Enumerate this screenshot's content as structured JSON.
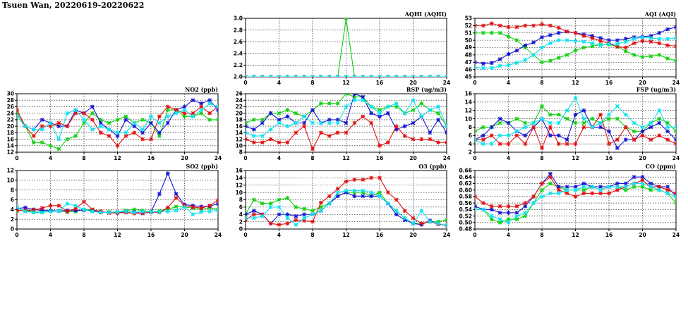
{
  "title": "Tsuen Wan, 20220619-20220622",
  "colors": {
    "green": "#10d010",
    "blue": "#1414d2",
    "red": "#e01010",
    "cyan": "#10e0f0"
  },
  "chart_data": [
    {
      "id": "no2",
      "type": "line",
      "title": "NO2 (ppb)",
      "xlim": [
        0,
        24
      ],
      "ylim": [
        12,
        30
      ],
      "xticks": [
        0,
        4,
        8,
        12,
        16,
        20,
        24
      ],
      "yticks": [
        12,
        14,
        16,
        18,
        20,
        22,
        24,
        26,
        28,
        30
      ],
      "series": [
        {
          "color": "green",
          "values": [
            24,
            20,
            15,
            15,
            14,
            13,
            16,
            17,
            21,
            24,
            22,
            21,
            22,
            23,
            21,
            22,
            21,
            17,
            25,
            25,
            23,
            23,
            24,
            22,
            22
          ]
        },
        {
          "color": "blue",
          "values": [
            23,
            20,
            19,
            22,
            21,
            20,
            20,
            25,
            24,
            26,
            21,
            19,
            17,
            22,
            20,
            18,
            21,
            18,
            21,
            25,
            26,
            28,
            27,
            28,
            25
          ]
        },
        {
          "color": "red",
          "values": [
            25,
            20,
            17,
            20,
            20,
            21,
            20,
            24,
            24,
            22,
            18,
            17,
            14,
            17,
            18,
            16,
            16,
            23,
            26,
            25,
            24,
            24,
            26,
            24,
            26
          ]
        },
        {
          "color": "cyan",
          "values": [
            23,
            20,
            19,
            19,
            21,
            16,
            24,
            25,
            22,
            19,
            20,
            19,
            18,
            18,
            21,
            19,
            23,
            21,
            23,
            24,
            25,
            23,
            25,
            27,
            26
          ]
        }
      ]
    },
    {
      "id": "so2",
      "type": "line",
      "title": "SO2 (ppb)",
      "xlim": [
        0,
        24
      ],
      "ylim": [
        0,
        12
      ],
      "xticks": [
        0,
        4,
        8,
        12,
        16,
        20,
        24
      ],
      "yticks": [
        0,
        2,
        4,
        6,
        8,
        10,
        12
      ],
      "series": [
        {
          "color": "green",
          "values": [
            3.7,
            3.8,
            3.5,
            3.5,
            3.6,
            3.7,
            3.5,
            3.6,
            4.0,
            4.0,
            3.4,
            3.5,
            3.5,
            3.8,
            4.0,
            3.8,
            3.5,
            3.7,
            4.0,
            4.6,
            4.5,
            4.3,
            4.0,
            4.4,
            4.0
          ]
        },
        {
          "color": "blue",
          "values": [
            4.2,
            4.4,
            4.0,
            3.8,
            3.8,
            3.7,
            3.8,
            3.8,
            3.9,
            3.8,
            3.5,
            3.4,
            3.3,
            3.5,
            3.5,
            3.2,
            3.5,
            7.2,
            11.4,
            7.2,
            5.0,
            4.8,
            4.6,
            4.7,
            5.2
          ]
        },
        {
          "color": "red",
          "values": [
            3.8,
            3.8,
            3.9,
            4.3,
            4.8,
            4.8,
            3.6,
            4.2,
            5.6,
            4.0,
            3.6,
            3.3,
            3.3,
            3.4,
            3.2,
            3.3,
            3.4,
            3.4,
            4.4,
            6.4,
            4.8,
            4.5,
            4.3,
            4.8,
            5.9
          ]
        },
        {
          "color": "cyan",
          "values": [
            4.5,
            3.6,
            3.4,
            3.4,
            3.6,
            3.7,
            5.2,
            4.8,
            4.0,
            3.6,
            3.4,
            3.4,
            3.5,
            3.6,
            3.4,
            3.6,
            3.5,
            3.5,
            3.6,
            3.8,
            4.5,
            3.0,
            3.5,
            3.6,
            3.8
          ]
        }
      ]
    },
    {
      "id": "aqhi",
      "type": "line",
      "title": "AQHI (AQHI)",
      "xlim": [
        0,
        24
      ],
      "ylim": [
        2.0,
        3.0
      ],
      "xticks": [
        0,
        4,
        8,
        12,
        16,
        20,
        24
      ],
      "yticks": [
        2.0,
        2.2,
        2.4,
        2.6,
        2.8,
        3.0
      ],
      "series": [
        {
          "color": "green",
          "values": [
            2,
            2,
            2,
            2,
            2,
            2,
            2,
            2,
            2,
            2,
            2,
            2,
            3,
            2,
            2,
            2,
            2,
            2,
            2,
            2,
            2,
            2,
            2,
            2,
            2
          ]
        },
        {
          "color": "blue",
          "values": [
            2,
            2,
            2,
            2,
            2,
            2,
            2,
            2,
            2,
            2,
            2,
            2,
            2,
            2,
            2,
            2,
            2,
            2,
            2,
            2,
            2,
            2,
            2,
            2,
            2
          ]
        },
        {
          "color": "red",
          "values": [
            2,
            2,
            2,
            2,
            2,
            2,
            2,
            2,
            2,
            2,
            2,
            2,
            2,
            2,
            2,
            2,
            2,
            2,
            2,
            2,
            2,
            2,
            2,
            2,
            2
          ]
        },
        {
          "color": "cyan",
          "values": [
            2,
            2,
            2,
            2,
            2,
            2,
            2,
            2,
            2,
            2,
            2,
            2,
            2,
            2,
            2,
            2,
            2,
            2,
            2,
            2,
            2,
            2,
            2,
            2,
            2
          ]
        }
      ]
    },
    {
      "id": "rsp",
      "type": "line",
      "title": "RSP (ug/m3)",
      "xlim": [
        0,
        24
      ],
      "ylim": [
        8,
        26
      ],
      "xticks": [
        0,
        4,
        8,
        12,
        16,
        20,
        24
      ],
      "yticks": [
        8,
        10,
        12,
        14,
        16,
        18,
        20,
        22,
        24,
        26
      ],
      "series": [
        {
          "color": "green",
          "values": [
            17,
            18,
            18,
            20,
            20,
            21,
            20,
            19,
            21,
            23,
            23,
            23,
            26,
            25,
            25,
            22,
            21,
            22,
            22,
            20,
            21,
            23,
            21,
            20,
            16
          ]
        },
        {
          "color": "blue",
          "values": [
            16,
            15,
            17,
            20,
            18,
            19,
            17,
            17,
            21,
            17,
            18,
            18,
            17,
            26,
            25,
            20,
            19,
            20,
            15,
            16,
            17,
            19,
            14,
            18,
            14
          ]
        },
        {
          "color": "red",
          "values": [
            12,
            11,
            11,
            12,
            11,
            11,
            14,
            16,
            9,
            14,
            13,
            14,
            14,
            17,
            19,
            17,
            10,
            11,
            16,
            13,
            12,
            12,
            12,
            11,
            11
          ]
        },
        {
          "color": "cyan",
          "values": [
            14,
            13,
            13,
            15,
            17,
            16,
            17,
            19,
            17,
            17,
            17,
            17,
            22,
            24,
            24,
            22,
            20,
            22,
            23,
            20,
            24,
            19,
            21,
            22,
            16
          ]
        }
      ]
    },
    {
      "id": "o3",
      "type": "line",
      "title": "O3 (ppb)",
      "xlim": [
        0,
        24
      ],
      "ylim": [
        0,
        16
      ],
      "xticks": [
        0,
        4,
        8,
        12,
        16,
        20,
        24
      ],
      "yticks": [
        0,
        2,
        4,
        6,
        8,
        10,
        12,
        14,
        16
      ],
      "series": [
        {
          "color": "green",
          "values": [
            4,
            8,
            7,
            7,
            8,
            8.5,
            6,
            5.5,
            5,
            6,
            7,
            9,
            10,
            10,
            10,
            9,
            10,
            7,
            5,
            3,
            1.5,
            1.5,
            2,
            2,
            2.5
          ]
        },
        {
          "color": "blue",
          "values": [
            4,
            5,
            4,
            1.5,
            4,
            4,
            3.5,
            4,
            4,
            5,
            7,
            9,
            10,
            9,
            9,
            9,
            9,
            7,
            4,
            2.5,
            1.5,
            1.2,
            2.3,
            1.4,
            1
          ]
        },
        {
          "color": "red",
          "values": [
            2.5,
            4,
            4,
            1.5,
            1.2,
            1.5,
            2.5,
            2.3,
            2,
            7.2,
            9,
            11,
            13,
            13.5,
            13.5,
            14,
            14,
            10,
            8,
            5,
            3,
            1.5,
            2,
            1.3,
            1
          ]
        },
        {
          "color": "cyan",
          "values": [
            3,
            3,
            3.5,
            6,
            6,
            3,
            1.2,
            3,
            4,
            5,
            7,
            10,
            10.5,
            10.5,
            10.5,
            10,
            9,
            7,
            5,
            3,
            1.5,
            5,
            2,
            1.5,
            1
          ]
        }
      ]
    },
    {
      "id": "aqi",
      "type": "line",
      "title": "AQI (AQI)",
      "xlim": [
        0,
        24
      ],
      "ylim": [
        45,
        53
      ],
      "xticks": [
        0,
        4,
        8,
        12,
        16,
        20,
        24
      ],
      "yticks": [
        45,
        46,
        47,
        48,
        49,
        50,
        51,
        52,
        53
      ],
      "series": [
        {
          "color": "green",
          "values": [
            51,
            51,
            51,
            51,
            50.5,
            50,
            49,
            48,
            47,
            47.2,
            47.6,
            48,
            48.6,
            49,
            49.2,
            49.4,
            49.4,
            49.2,
            48.5,
            48,
            47.7,
            47.8,
            48,
            47.5,
            47.2
          ]
        },
        {
          "color": "blue",
          "values": [
            47,
            46.8,
            46.9,
            47.4,
            48.1,
            48.6,
            49.3,
            49.7,
            50.4,
            50.7,
            51,
            51.2,
            51,
            50.8,
            50.6,
            50.3,
            50,
            50,
            50.2,
            50.4,
            50.5,
            50.6,
            51,
            51.5,
            51.8
          ]
        },
        {
          "color": "red",
          "values": [
            52,
            52,
            52.3,
            52,
            51.8,
            51.8,
            52,
            52,
            52.2,
            52,
            51.7,
            51.2,
            51,
            50.6,
            50.3,
            49.9,
            49.6,
            49.1,
            49,
            49.6,
            49.9,
            49.8,
            49.6,
            49.3,
            49.2
          ]
        },
        {
          "color": "cyan",
          "values": [
            46.3,
            46.2,
            46.2,
            46.5,
            46.6,
            46.9,
            47.3,
            48,
            49,
            49.6,
            50,
            50,
            49.9,
            49.8,
            49.6,
            49.3,
            49.5,
            49.5,
            49.8,
            50.2,
            50.4,
            50.3,
            50.2,
            50.2,
            50.3
          ]
        }
      ]
    },
    {
      "id": "fsp",
      "type": "line",
      "title": "FSP (ug/m3)",
      "xlim": [
        0,
        24
      ],
      "ylim": [
        2,
        16
      ],
      "xticks": [
        0,
        4,
        8,
        12,
        16,
        20,
        24
      ],
      "yticks": [
        2,
        4,
        6,
        8,
        10,
        12,
        14,
        16
      ],
      "series": [
        {
          "color": "green",
          "values": [
            7,
            8,
            8,
            9,
            9,
            10,
            9,
            9,
            13,
            11,
            11,
            10,
            9,
            9,
            10,
            9,
            10,
            10,
            8,
            7,
            7,
            9,
            10,
            9,
            7
          ]
        },
        {
          "color": "blue",
          "values": [
            5,
            6,
            8,
            10,
            9,
            7,
            6,
            8,
            10,
            6,
            6,
            5,
            11,
            12,
            8,
            8,
            7,
            3,
            5,
            5,
            7,
            8,
            9,
            7,
            5
          ]
        },
        {
          "color": "red",
          "values": [
            5,
            5,
            6,
            4,
            4,
            6,
            4,
            8,
            3,
            8,
            4,
            4,
            4,
            8,
            8,
            11,
            4,
            5,
            8,
            5,
            6,
            5,
            6,
            5,
            4
          ]
        },
        {
          "color": "cyan",
          "values": [
            5,
            4,
            4,
            6,
            6,
            7,
            8,
            9,
            10,
            9,
            9,
            12,
            15,
            10,
            8,
            9,
            11,
            13,
            11,
            9,
            8,
            9,
            12,
            8,
            8
          ]
        }
      ]
    },
    {
      "id": "co",
      "type": "line",
      "title": "CO (ppm)",
      "xlim": [
        0,
        24
      ],
      "ylim": [
        0.48,
        0.66
      ],
      "xticks": [
        0,
        4,
        8,
        12,
        16,
        20,
        24
      ],
      "yticks": [
        0.48,
        0.5,
        0.52,
        0.54,
        0.56,
        0.58,
        0.6,
        0.62,
        0.64,
        0.66
      ],
      "series": [
        {
          "color": "green",
          "values": [
            0.55,
            0.54,
            0.51,
            0.5,
            0.51,
            0.51,
            0.52,
            0.56,
            0.6,
            0.62,
            0.61,
            0.6,
            0.6,
            0.6,
            0.61,
            0.61,
            0.61,
            0.61,
            0.6,
            0.61,
            0.61,
            0.6,
            0.6,
            0.59,
            0.56
          ]
        },
        {
          "color": "blue",
          "values": [
            0.55,
            0.54,
            0.54,
            0.53,
            0.53,
            0.53,
            0.55,
            0.58,
            0.62,
            0.65,
            0.61,
            0.61,
            0.61,
            0.62,
            0.61,
            0.61,
            0.61,
            0.62,
            0.62,
            0.64,
            0.64,
            0.62,
            0.61,
            0.61,
            0.58
          ]
        },
        {
          "color": "red",
          "values": [
            0.58,
            0.56,
            0.55,
            0.55,
            0.55,
            0.55,
            0.56,
            0.58,
            0.62,
            0.64,
            0.6,
            0.59,
            0.58,
            0.59,
            0.59,
            0.59,
            0.59,
            0.6,
            0.61,
            0.62,
            0.63,
            0.61,
            0.61,
            0.6,
            0.59
          ]
        },
        {
          "color": "cyan",
          "values": [
            0.54,
            0.54,
            0.52,
            0.51,
            0.5,
            0.52,
            0.53,
            0.56,
            0.58,
            0.59,
            0.59,
            0.6,
            0.6,
            0.61,
            0.61,
            0.6,
            0.61,
            0.61,
            0.61,
            0.62,
            0.62,
            0.61,
            0.6,
            0.59,
            0.58
          ]
        }
      ]
    }
  ]
}
